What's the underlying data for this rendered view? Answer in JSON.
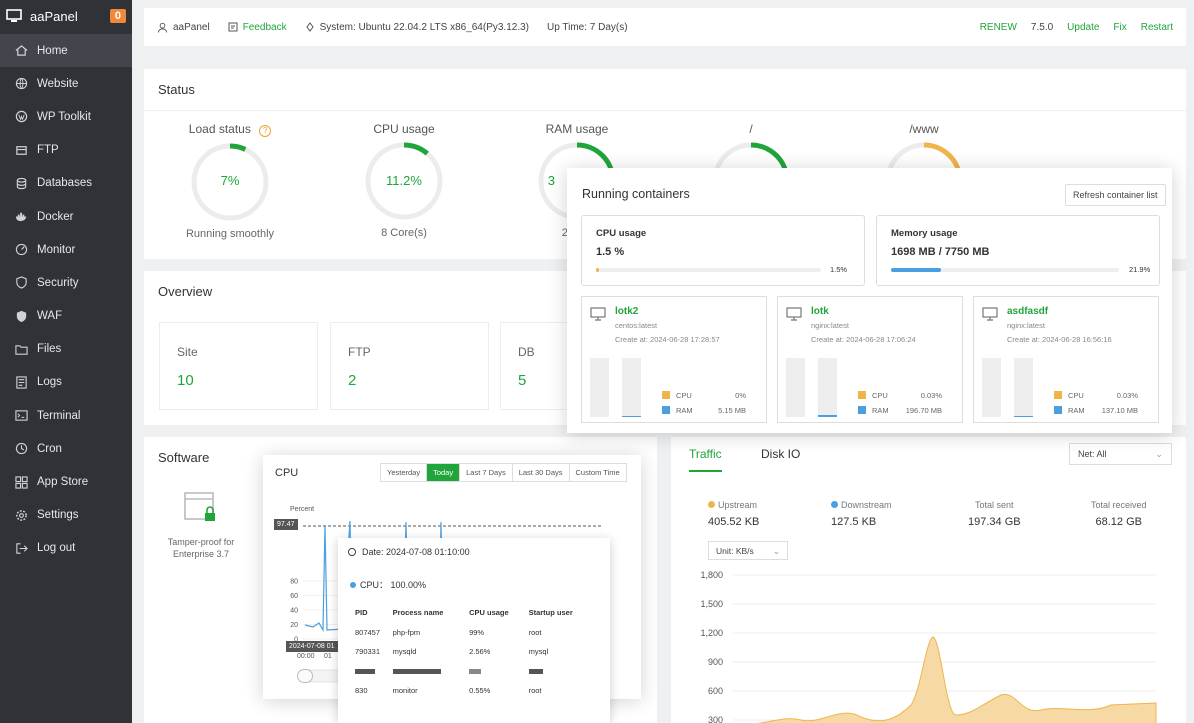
{
  "brand": {
    "name": "aaPanel",
    "badge": "0"
  },
  "sidebar": {
    "items": [
      {
        "label": "Home",
        "icon": "home-icon"
      },
      {
        "label": "Website",
        "icon": "globe-icon"
      },
      {
        "label": "WP Toolkit",
        "icon": "wordpress-icon"
      },
      {
        "label": "FTP",
        "icon": "ftp-icon"
      },
      {
        "label": "Databases",
        "icon": "database-icon"
      },
      {
        "label": "Docker",
        "icon": "docker-icon"
      },
      {
        "label": "Monitor",
        "icon": "monitor-icon"
      },
      {
        "label": "Security",
        "icon": "shield-icon"
      },
      {
        "label": "WAF",
        "icon": "waf-icon"
      },
      {
        "label": "Files",
        "icon": "folder-icon"
      },
      {
        "label": "Logs",
        "icon": "logs-icon"
      },
      {
        "label": "Terminal",
        "icon": "terminal-icon"
      },
      {
        "label": "Cron",
        "icon": "clock-icon"
      },
      {
        "label": "App Store",
        "icon": "apps-icon"
      },
      {
        "label": "Settings",
        "icon": "settings-icon"
      },
      {
        "label": "Log out",
        "icon": "logout-icon"
      }
    ]
  },
  "topbar": {
    "user": "aaPanel",
    "feedback": "Feedback",
    "system": "System: Ubuntu 22.04.2 LTS x86_64(Py3.12.3)",
    "uptime": "Up Time: 7 Day(s)",
    "renew": "RENEW",
    "version": "7.5.0",
    "update": "Update",
    "fix": "Fix",
    "restart": "Restart"
  },
  "status": {
    "title": "Status",
    "load": {
      "label": "Load status",
      "value": "7%",
      "sub": "Running smoothly",
      "fraction": 0.07
    },
    "cpu": {
      "label": "CPU usage",
      "value": "11.2%",
      "sub": "8 Core(s)",
      "fraction": 0.112
    },
    "ram": {
      "label": "RAM usage",
      "value": "3",
      "sub": "2953 /",
      "fraction": 0.38
    },
    "disk1": {
      "label": "/",
      "fraction": 0.3
    },
    "disk2": {
      "label": "/www",
      "fraction": 0.3
    }
  },
  "overview": {
    "title": "Overview",
    "items": [
      {
        "k": "Site",
        "v": "10"
      },
      {
        "k": "FTP",
        "v": "2"
      },
      {
        "k": "DB",
        "v": "5"
      }
    ]
  },
  "software": {
    "title": "Software",
    "item": "Tamper-proof for Enterprise 3.7"
  },
  "containers": {
    "title": "Running containers",
    "refresh": "Refresh container list",
    "cpu": {
      "label": "CPU usage",
      "value": "1.5 %",
      "pct": "1.5%",
      "fraction": 0.015
    },
    "mem": {
      "label": "Memory usage",
      "value": "1698 MB / 7750 MB",
      "pct": "21.9%",
      "fraction": 0.219
    },
    "list": [
      {
        "name": "lotk2",
        "image": "centos:latest",
        "created": "Create at: 2024-06-28 17:28:57",
        "cpu": "0%",
        "ram": "5.15 MB",
        "cpu_f": 0.0,
        "ram_f": 0.01
      },
      {
        "name": "lotk",
        "image": "nginx:latest",
        "created": "Create at: 2024-06-28 17:06:24",
        "cpu": "0.03%",
        "ram": "196.70 MB",
        "cpu_f": 0.0,
        "ram_f": 0.03
      },
      {
        "name": "asdfasdf",
        "image": "nginx:latest",
        "created": "Create at: 2024-06-28 16:56:16",
        "cpu": "0.03%",
        "ram": "137.10 MB",
        "cpu_f": 0.0,
        "ram_f": 0.02
      }
    ],
    "cpu_lbl": "CPU",
    "ram_lbl": "RAM"
  },
  "cpu_chart": {
    "title": "CPU",
    "ranges": [
      "Yesterday",
      "Today",
      "Last 7 Days",
      "Last 30 Days",
      "Custom Time"
    ],
    "active": "Today",
    "ylabel": "Percent",
    "y_ticks": [
      "80",
      "60",
      "40",
      "20",
      "0"
    ],
    "marker": "97.47",
    "time_label": "2024-07-08 01",
    "x_labels": [
      "00:00",
      "01"
    ],
    "tooltip": {
      "date": "Date: 2024-07-08 01:10:00",
      "cpu": "CPU： 100.00%",
      "headers": [
        "PID",
        "Process name",
        "CPU usage",
        "Startup user"
      ],
      "rows": [
        [
          "807457",
          "php-fpm",
          "99%",
          "root"
        ],
        [
          "790331",
          "mysqld",
          "2.56%",
          "mysql"
        ],
        [
          "830",
          "monitor",
          "0.55%",
          "root"
        ]
      ]
    }
  },
  "traffic": {
    "tabs": [
      "Traffic",
      "Disk IO"
    ],
    "net": "Net: All",
    "stats": [
      {
        "k": "Upstream",
        "v": "405.52 KB",
        "color": "#f0b54a"
      },
      {
        "k": "Downstream",
        "v": "127.5 KB",
        "color": "#4a9fe0"
      },
      {
        "k": "Total sent",
        "v": "197.34 GB"
      },
      {
        "k": "Total received",
        "v": "68.12 GB"
      }
    ],
    "unit": "Unit: KB/s",
    "chart_data": {
      "type": "area",
      "y_ticks": [
        "1,800",
        "1,500",
        "1,200",
        "900",
        "600",
        "300"
      ]
    }
  },
  "colors": {
    "green": "#20a53a",
    "orange": "#f0b54a",
    "blue": "#4a9fe0",
    "sidebar": "#2f3237"
  }
}
